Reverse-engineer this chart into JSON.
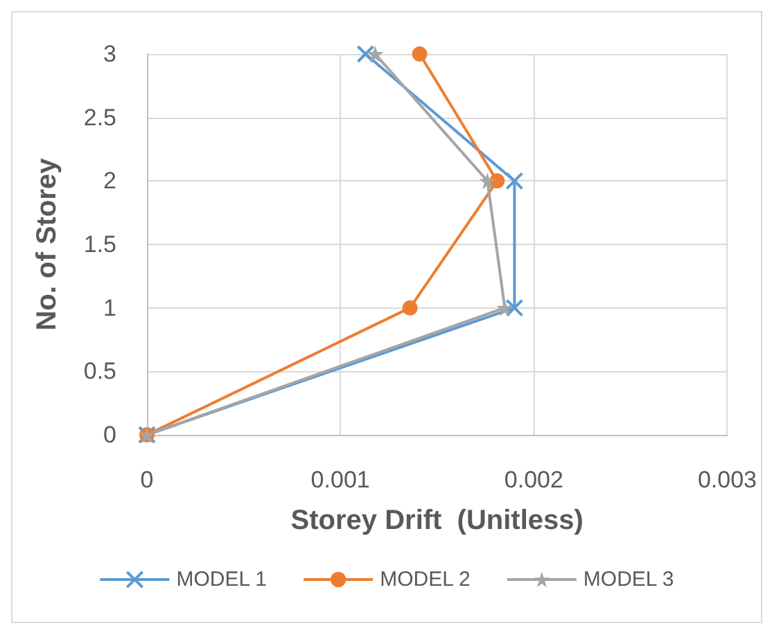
{
  "chart_data": {
    "type": "line",
    "xlabel": "Storey Drift  (Unitless)",
    "ylabel": "No. of Storey",
    "xlim": [
      0,
      0.003
    ],
    "xticks": [
      0,
      0.001,
      0.002,
      0.003
    ],
    "ylim": [
      0,
      3
    ],
    "yticks": [
      0,
      0.5,
      1,
      1.5,
      2,
      2.5,
      3
    ],
    "grid": true,
    "legend": "bottom",
    "line_style": "solid",
    "series": [
      {
        "name": "MODEL 1",
        "color": "#5b9bd5",
        "marker": "cross",
        "x": [
          0,
          0.0019,
          0.0019,
          0.00113
        ],
        "values": [
          0,
          1,
          2,
          3
        ]
      },
      {
        "name": "MODEL 2",
        "color": "#ed7d31",
        "marker": "circle",
        "x": [
          0,
          0.00136,
          0.00181,
          0.00141
        ],
        "values": [
          0,
          1,
          2,
          3
        ]
      },
      {
        "name": "MODEL 3",
        "color": "#a5a5a5",
        "marker": "star",
        "x": [
          0,
          0.00185,
          0.00176,
          0.00118
        ],
        "values": [
          0,
          1,
          2,
          3
        ]
      }
    ]
  }
}
